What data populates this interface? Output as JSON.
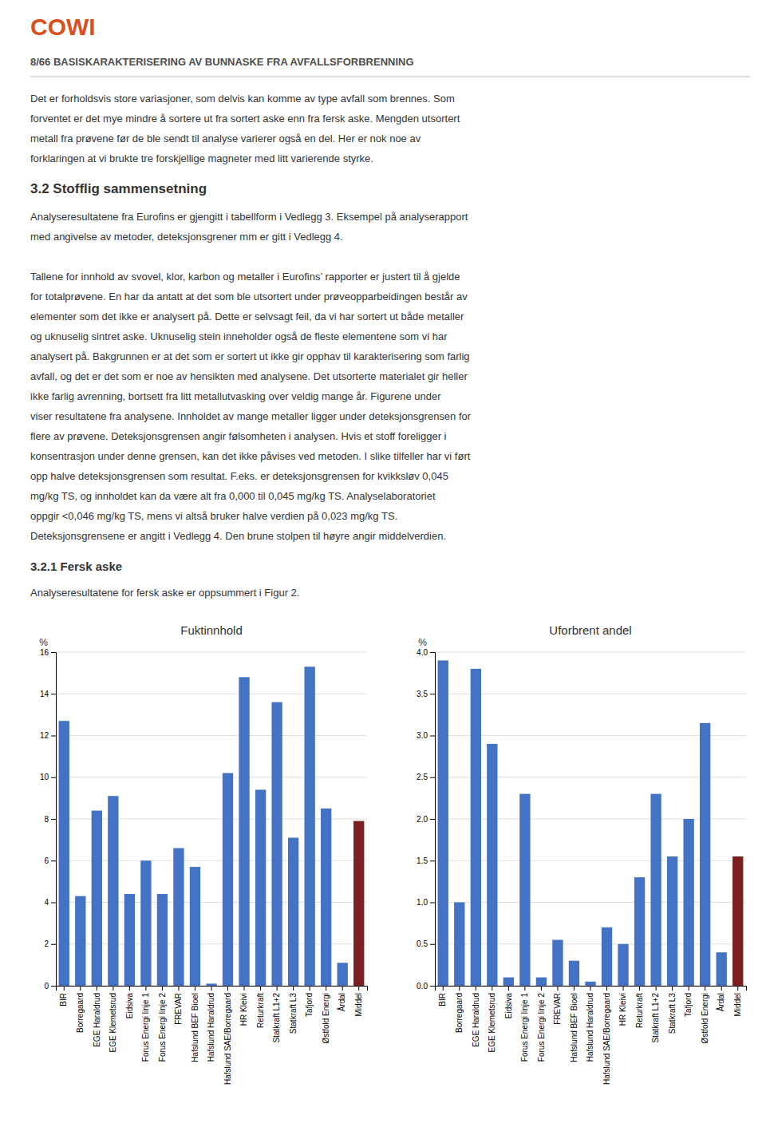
{
  "cowi_text": "COWI",
  "cowi_color": "#D94F1E",
  "page_header": "8/66    BASISKARAKTERISERING AV BUNNASKE FRA AVFALLSFORBRENNING",
  "body_text": [
    "Det er forholdsvis store variasjoner, som delvis kan komme av type avfall som brennes. Som",
    "forventet er det mye mindre å sortere ut fra sortert aske enn fra fersk aske. Mengden utsortert",
    "metall fra prøvene før de ble sendt til analyse varierer også en del. Her er nok noe av",
    "forklaringen at vi brukte tre forskjellige magneter med litt varierende styrke."
  ],
  "section_header": "3.2    Stofflig sammensetning",
  "section_text": [
    [
      "Analyseresultatene fra Eurofins er gjengitt i tabellform i Vedlegg 3. Eksempel på analyserapport",
      "med angivelse av metoder, deteksjonsgrener mm er gitt i Vedlegg 4."
    ],
    [
      "Tallene for innhold av svovel, klor, karbon og metaller i Eurofins’ rapporter er justert til å gjelde",
      "for totalprøvene. En har da antatt at det som ble utsortert under prøveopparbeidingen består av",
      "elementer som det ikke er analysert på. Dette er selvsagt feil, da vi har sortert ut både metaller",
      "og uknuselig sintret aske. Uknuselig stein inneholder også de fleste elementene som vi har",
      "analysert på. Bakgrunnen er at det som er sortert ut ikke gir opphav til karakterisering som farlig",
      "avfall, og det er det som er noe av hensikten med analysene. Det utsorterte materialet gir heller",
      "ikke farlig avrenning, bortsett fra litt metallutvasking over veldig mange år. Figurene under",
      "viser resultatene fra analysene. Innholdet av mange metaller ligger under deteksjonsgrensen for",
      "flere av prøvene. Deteksjonsgrensen angir følsomheten i analysen. Hvis et stoff foreligger i",
      "konsentrasjon under denne grensen, kan det ikke påvises ved metoden. I slike tilfeller har vi ført",
      "opp halve deteksjonsgrensen som resultat. F.eks. er deteksjonsgrensen for kvikksløv 0,045",
      "mg/kg TS, og innholdet kan da være alt fra 0,000 til 0,045 mg/kg TS. Analyselaboratoriet",
      "oppgir <0,046 mg/kg TS, mens vi altså bruker halve verdien på 0,023 mg/kg TS.",
      "Deteksjonsgrensene er angitt i Vedlegg 4. Den brune stolpen til høyre angir middelverdien."
    ]
  ],
  "subsection_header": "3.2.1    Fersk aske",
  "subsection_text": "Analyseresultatene for fersk aske er oppsummert i Figur 2.",
  "chart_data": [
    {
      "type": "bar",
      "title": "Fuktinnhold",
      "ylabel": "%",
      "categories": [
        "BIR",
        "Borregaard",
        "EGE Haraldrud",
        "EGE Klemetsrud",
        "Eidsiva",
        "Forus Energi linje 1",
        "Forus Energi linje 2",
        "FREVAR",
        "Hafslund BEF Bioel",
        "Hafslund Haraldrud",
        "Hafslund SAE/Borregaard",
        "HR Kleivi",
        "Returkraft",
        "Statkraft L1+2",
        "Statkraft L3",
        "Tafjord",
        "Østfold Energi",
        "Årdal",
        "Middel"
      ],
      "values": [
        12.7,
        4.3,
        8.4,
        9.1,
        4.4,
        6.0,
        4.4,
        6.6,
        5.7,
        0.1,
        10.2,
        14.8,
        9.4,
        13.6,
        7.1,
        15.3,
        8.5,
        1.1,
        7.9
      ],
      "colors": [
        "#4472C4",
        "#4472C4",
        "#4472C4",
        "#4472C4",
        "#4472C4",
        "#4472C4",
        "#4472C4",
        "#4472C4",
        "#4472C4",
        "#4472C4",
        "#4472C4",
        "#4472C4",
        "#4472C4",
        "#4472C4",
        "#4472C4",
        "#4472C4",
        "#4472C4",
        "#4472C4",
        "#7B2020"
      ],
      "ylim": [
        0,
        16
      ],
      "yticks": [
        0,
        2,
        4,
        6,
        8,
        10,
        12,
        14,
        16
      ],
      "grid": true
    },
    {
      "type": "bar",
      "title": "Uforbrent andel",
      "ylabel": "%",
      "categories": [
        "BIR",
        "Borregaard",
        "EGE Haraldrud",
        "EGE Klemetsrud",
        "Eidsiva",
        "Forus Energi linje 1",
        "Forus Energi linje 2",
        "FREVAR",
        "Hafslund BEF Bioel",
        "Hafslund Haraldrud",
        "Hafslund SAE/Borregaard",
        "HR Kleivi",
        "Returkraft",
        "Statkraft L1+2",
        "Statkraft L3",
        "Tafjord",
        "Østfold Energi",
        "Årdal",
        "Middel"
      ],
      "values": [
        3.9,
        1.0,
        3.8,
        2.9,
        0.1,
        2.3,
        0.1,
        0.55,
        0.3,
        0.05,
        0.7,
        0.5,
        1.3,
        2.3,
        1.55,
        2.0,
        3.15,
        0.4,
        1.55
      ],
      "colors": [
        "#4472C4",
        "#4472C4",
        "#4472C4",
        "#4472C4",
        "#4472C4",
        "#4472C4",
        "#4472C4",
        "#4472C4",
        "#4472C4",
        "#4472C4",
        "#4472C4",
        "#4472C4",
        "#4472C4",
        "#4472C4",
        "#4472C4",
        "#4472C4",
        "#4472C4",
        "#4472C4",
        "#7B2020"
      ],
      "ylim": [
        0,
        4
      ],
      "yticks": [
        {
          "value": 0,
          "label": "0.0"
        },
        0.5,
        {
          "value": 1,
          "label": "1.0"
        },
        1.5,
        {
          "value": 2,
          "label": "2.0"
        },
        2.5,
        {
          "value": 3,
          "label": "3.0"
        },
        3.5,
        {
          "value": 4,
          "label": "4.0"
        }
      ],
      "grid": true
    }
  ]
}
